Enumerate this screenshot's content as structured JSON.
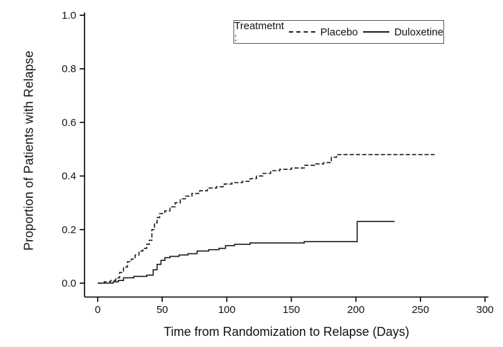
{
  "figure": {
    "ylabel": "Proportion of Patients with Relapse",
    "xlabel": "Time from Randomization to Relapse (Days)",
    "legend_title": "Treatmetnt :"
  },
  "chart_data": {
    "type": "line",
    "subtype": "step",
    "title": "",
    "xlabel": "Time from Randomization to Relapse (Days)",
    "ylabel": "Proportion of Patients with Relapse",
    "xlim": [
      0,
      300
    ],
    "ylim": [
      0,
      1
    ],
    "x_ticks": [
      0,
      50,
      100,
      150,
      200,
      250,
      300
    ],
    "y_ticks": [
      0,
      0.2,
      0.4,
      0.6,
      0.8,
      1.0
    ],
    "y_tick_labels": [
      "0.0",
      "0.2",
      "0.4",
      "0.6",
      "0.8",
      "1.0"
    ],
    "grid": false,
    "legend": {
      "title": "Treatmetnt :",
      "position": "top-inside",
      "border": true
    },
    "line_color": "#1a1a1a",
    "series": [
      {
        "name": "Placebo",
        "style": "dashed",
        "points": [
          [
            0,
            0
          ],
          [
            5,
            0.005
          ],
          [
            10,
            0.01
          ],
          [
            14,
            0.02
          ],
          [
            17,
            0.04
          ],
          [
            20,
            0.06
          ],
          [
            23,
            0.08
          ],
          [
            26,
            0.09
          ],
          [
            29,
            0.105
          ],
          [
            32,
            0.12
          ],
          [
            35,
            0.13
          ],
          [
            38,
            0.145
          ],
          [
            40,
            0.16
          ],
          [
            42,
            0.2
          ],
          [
            44,
            0.225
          ],
          [
            46,
            0.245
          ],
          [
            48,
            0.26
          ],
          [
            52,
            0.27
          ],
          [
            56,
            0.285
          ],
          [
            60,
            0.3
          ],
          [
            64,
            0.315
          ],
          [
            68,
            0.325
          ],
          [
            73,
            0.335
          ],
          [
            79,
            0.345
          ],
          [
            85,
            0.355
          ],
          [
            92,
            0.36
          ],
          [
            98,
            0.37
          ],
          [
            104,
            0.375
          ],
          [
            112,
            0.38
          ],
          [
            118,
            0.39
          ],
          [
            123,
            0.4
          ],
          [
            128,
            0.41
          ],
          [
            134,
            0.42
          ],
          [
            141,
            0.425
          ],
          [
            150,
            0.43
          ],
          [
            160,
            0.44
          ],
          [
            168,
            0.445
          ],
          [
            175,
            0.45
          ],
          [
            181,
            0.47
          ],
          [
            185,
            0.48
          ],
          [
            261,
            0.48
          ]
        ]
      },
      {
        "name": "Duloxetine",
        "style": "solid",
        "points": [
          [
            0,
            0
          ],
          [
            12,
            0.005
          ],
          [
            16,
            0.01
          ],
          [
            20,
            0.02
          ],
          [
            28,
            0.025
          ],
          [
            38,
            0.03
          ],
          [
            43,
            0.05
          ],
          [
            46,
            0.07
          ],
          [
            49,
            0.085
          ],
          [
            52,
            0.095
          ],
          [
            56,
            0.1
          ],
          [
            63,
            0.105
          ],
          [
            70,
            0.11
          ],
          [
            77,
            0.12
          ],
          [
            86,
            0.125
          ],
          [
            94,
            0.13
          ],
          [
            99,
            0.14
          ],
          [
            106,
            0.145
          ],
          [
            118,
            0.15
          ],
          [
            157,
            0.15
          ],
          [
            160,
            0.155
          ],
          [
            200,
            0.155
          ],
          [
            201,
            0.23
          ],
          [
            230,
            0.23
          ]
        ]
      }
    ]
  }
}
